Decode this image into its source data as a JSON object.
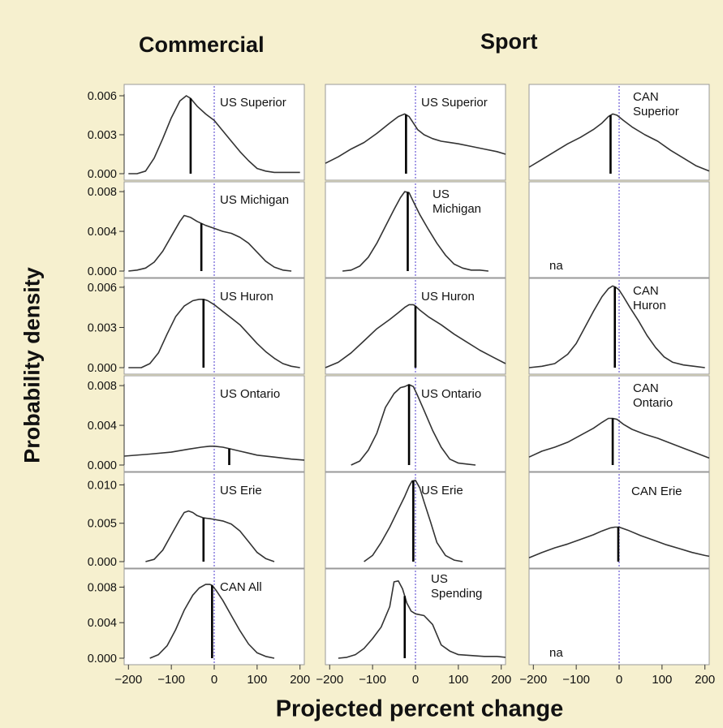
{
  "titles": {
    "col1": "Commercial",
    "col2": "Sport",
    "ylabel": "Probability density",
    "xlabel": "Projected percent change"
  },
  "chart_data": {
    "type": "line",
    "x_ticks": [
      -200,
      -100,
      0,
      100,
      200
    ],
    "x_tick_labels": [
      "−200",
      "−100",
      "0",
      "100",
      "200"
    ],
    "x_range": [
      -210,
      210
    ],
    "reference_line": {
      "x": 0,
      "color": "#6a5bd6",
      "style": "dotted"
    },
    "row_axes": [
      {
        "ylim": [
          0,
          0.0065
        ],
        "ticks": [
          "0.006",
          "0.003",
          "0.000"
        ],
        "tick_values": [
          0.006,
          0.003,
          0.0
        ]
      },
      {
        "ylim": [
          0,
          0.0085
        ],
        "ticks": [
          "0.008",
          "0.004",
          "0.000"
        ],
        "tick_values": [
          0.008,
          0.004,
          0.0
        ]
      },
      {
        "ylim": [
          0,
          0.0063
        ],
        "ticks": [
          "0.006",
          "0.003",
          "0.000"
        ],
        "tick_values": [
          0.006,
          0.003,
          0.0
        ]
      },
      {
        "ylim": [
          0,
          0.0085
        ],
        "ticks": [
          "0.008",
          "0.004",
          "0.000"
        ],
        "tick_values": [
          0.008,
          0.004,
          0.0
        ]
      },
      {
        "ylim": [
          0,
          0.011
        ],
        "ticks": [
          "0.010",
          "0.005",
          "0.000"
        ],
        "tick_values": [
          0.01,
          0.005,
          0.0
        ]
      },
      {
        "ylim": [
          0,
          0.0095
        ],
        "ticks": [
          "0.008",
          "0.004",
          "0.000"
        ],
        "tick_values": [
          0.008,
          0.004,
          0.0
        ]
      }
    ],
    "panels": [
      {
        "row": 0,
        "col": 0,
        "label": [
          "US Superior"
        ],
        "mean": -55,
        "x": [
          -200,
          -180,
          -160,
          -140,
          -120,
          -100,
          -80,
          -65,
          -55,
          -40,
          -20,
          0,
          20,
          40,
          60,
          80,
          100,
          120,
          140,
          160,
          180,
          200
        ],
        "y": [
          0,
          0,
          0.0002,
          0.0012,
          0.0027,
          0.0043,
          0.0056,
          0.006,
          0.0058,
          0.0052,
          0.0046,
          0.0041,
          0.0033,
          0.0025,
          0.0017,
          0.001,
          0.0004,
          0.0002,
          0.0001,
          0.0001,
          0.0001,
          0.0001
        ]
      },
      {
        "row": 0,
        "col": 1,
        "label": [
          "US Superior"
        ],
        "mean": -22,
        "x": [
          -210,
          -180,
          -150,
          -120,
          -90,
          -60,
          -40,
          -25,
          -15,
          -5,
          5,
          20,
          40,
          60,
          80,
          100,
          130,
          160,
          190,
          210
        ],
        "y": [
          0.0008,
          0.0013,
          0.0019,
          0.0024,
          0.0031,
          0.0039,
          0.0044,
          0.0046,
          0.0044,
          0.0039,
          0.0034,
          0.003,
          0.0027,
          0.0025,
          0.0024,
          0.0023,
          0.0021,
          0.0019,
          0.0017,
          0.0015
        ]
      },
      {
        "row": 0,
        "col": 2,
        "label": [
          "CAN",
          "Superior"
        ],
        "mean": -20,
        "x": [
          -210,
          -180,
          -150,
          -120,
          -90,
          -60,
          -40,
          -25,
          -15,
          -5,
          10,
          30,
          60,
          90,
          120,
          150,
          180,
          210
        ],
        "y": [
          0.0005,
          0.0011,
          0.0017,
          0.0023,
          0.0028,
          0.0034,
          0.0039,
          0.0044,
          0.0046,
          0.0045,
          0.0041,
          0.0036,
          0.003,
          0.0025,
          0.0018,
          0.0012,
          0.0006,
          0.0002
        ]
      },
      {
        "row": 1,
        "col": 0,
        "label": [
          "US Michigan"
        ],
        "mean": -30,
        "x": [
          -200,
          -180,
          -160,
          -140,
          -120,
          -100,
          -80,
          -70,
          -55,
          -40,
          -20,
          0,
          20,
          40,
          60,
          80,
          100,
          120,
          140,
          160,
          180
        ],
        "y": [
          0,
          0.0001,
          0.0003,
          0.0009,
          0.002,
          0.0035,
          0.005,
          0.0056,
          0.0054,
          0.005,
          0.0046,
          0.0043,
          0.004,
          0.0038,
          0.0034,
          0.0028,
          0.0019,
          0.001,
          0.0004,
          0.0001,
          0
        ]
      },
      {
        "row": 1,
        "col": 1,
        "label": [
          "US",
          "Michigan"
        ],
        "mean": -18,
        "x": [
          -170,
          -150,
          -130,
          -110,
          -90,
          -70,
          -50,
          -35,
          -25,
          -15,
          -5,
          10,
          30,
          50,
          70,
          90,
          110,
          130,
          150,
          170
        ],
        "y": [
          0,
          0.0001,
          0.0005,
          0.0014,
          0.0028,
          0.0045,
          0.0062,
          0.0074,
          0.008,
          0.0079,
          0.007,
          0.0057,
          0.0042,
          0.0028,
          0.0016,
          0.0007,
          0.0003,
          0.0001,
          0.0001,
          0
        ]
      },
      {
        "row": 1,
        "col": 2,
        "label": [
          "na"
        ],
        "mean": null,
        "x": [],
        "y": []
      },
      {
        "row": 2,
        "col": 0,
        "label": [
          "US Huron"
        ],
        "mean": -25,
        "x": [
          -200,
          -170,
          -150,
          -130,
          -110,
          -90,
          -70,
          -50,
          -35,
          -25,
          -15,
          0,
          20,
          40,
          60,
          80,
          100,
          120,
          140,
          160,
          180,
          200
        ],
        "y": [
          0,
          0,
          0.0003,
          0.0011,
          0.0025,
          0.0038,
          0.0046,
          0.005,
          0.0051,
          0.0051,
          0.005,
          0.0047,
          0.0042,
          0.0037,
          0.0032,
          0.0025,
          0.0018,
          0.0012,
          0.0007,
          0.0003,
          0.0001,
          0
        ]
      },
      {
        "row": 2,
        "col": 1,
        "label": [
          "US Huron"
        ],
        "mean": 0,
        "x": [
          -210,
          -180,
          -150,
          -120,
          -90,
          -60,
          -40,
          -25,
          -15,
          -5,
          0,
          10,
          30,
          60,
          90,
          120,
          150,
          180,
          210
        ],
        "y": [
          0,
          0.0004,
          0.0011,
          0.002,
          0.0029,
          0.0036,
          0.0041,
          0.0045,
          0.0047,
          0.0047,
          0.0046,
          0.0043,
          0.0038,
          0.0032,
          0.0025,
          0.0019,
          0.0013,
          0.0008,
          0.0003
        ]
      },
      {
        "row": 2,
        "col": 2,
        "label": [
          "CAN",
          "Huron"
        ],
        "mean": -10,
        "x": [
          -210,
          -180,
          -150,
          -120,
          -100,
          -80,
          -60,
          -40,
          -25,
          -15,
          -8,
          0,
          10,
          25,
          45,
          65,
          85,
          105,
          125,
          150,
          175,
          200
        ],
        "y": [
          0,
          0.0001,
          0.0003,
          0.001,
          0.0018,
          0.003,
          0.0042,
          0.0053,
          0.0059,
          0.0061,
          0.006,
          0.0058,
          0.0053,
          0.0045,
          0.0035,
          0.0024,
          0.0015,
          0.0008,
          0.0004,
          0.0002,
          0.0001,
          0
        ]
      },
      {
        "row": 3,
        "col": 0,
        "label": [
          "US Ontario"
        ],
        "mean": 35,
        "x": [
          -210,
          -150,
          -100,
          -60,
          -30,
          -10,
          0,
          20,
          40,
          60,
          80,
          100,
          140,
          180,
          210
        ],
        "y": [
          0.0009,
          0.0011,
          0.0013,
          0.0016,
          0.0018,
          0.0019,
          0.0019,
          0.0018,
          0.0016,
          0.0014,
          0.0012,
          0.001,
          0.0008,
          0.0006,
          0.0005
        ]
      },
      {
        "row": 3,
        "col": 1,
        "label": [
          "US Ontario"
        ],
        "mean": -15,
        "x": [
          -150,
          -130,
          -110,
          -90,
          -70,
          -50,
          -35,
          -25,
          -15,
          -5,
          5,
          20,
          40,
          60,
          80,
          100,
          120,
          140
        ],
        "y": [
          0,
          0.0004,
          0.0015,
          0.0032,
          0.0058,
          0.0072,
          0.0078,
          0.0079,
          0.0081,
          0.0079,
          0.007,
          0.0055,
          0.0035,
          0.0018,
          0.0006,
          0.0002,
          0.0001,
          0
        ]
      },
      {
        "row": 3,
        "col": 2,
        "label": [
          "CAN",
          "Ontario"
        ],
        "mean": -15,
        "x": [
          -210,
          -180,
          -150,
          -120,
          -90,
          -60,
          -40,
          -25,
          -15,
          -5,
          10,
          30,
          60,
          90,
          120,
          150,
          180,
          210
        ],
        "y": [
          0.0008,
          0.0014,
          0.0018,
          0.0023,
          0.003,
          0.0037,
          0.0043,
          0.0047,
          0.0047,
          0.0046,
          0.0041,
          0.0036,
          0.0031,
          0.0027,
          0.0022,
          0.0017,
          0.0012,
          0.0007
        ]
      },
      {
        "row": 4,
        "col": 0,
        "label": [
          "US Erie"
        ],
        "mean": -25,
        "x": [
          -160,
          -140,
          -120,
          -100,
          -80,
          -70,
          -60,
          -50,
          -40,
          -25,
          -10,
          0,
          20,
          40,
          60,
          80,
          100,
          120,
          140
        ],
        "y": [
          0,
          0.0003,
          0.0015,
          0.0035,
          0.0055,
          0.0064,
          0.0066,
          0.0064,
          0.006,
          0.0057,
          0.0056,
          0.0055,
          0.0053,
          0.0049,
          0.004,
          0.0026,
          0.0012,
          0.0004,
          0
        ]
      },
      {
        "row": 4,
        "col": 1,
        "label": [
          "US Erie"
        ],
        "mean": -5,
        "x": [
          -120,
          -100,
          -80,
          -60,
          -40,
          -25,
          -15,
          -8,
          0,
          10,
          20,
          35,
          50,
          70,
          90,
          110
        ],
        "y": [
          0,
          0.0008,
          0.0025,
          0.0045,
          0.0068,
          0.0085,
          0.0098,
          0.0105,
          0.0106,
          0.0096,
          0.0078,
          0.0052,
          0.0025,
          0.0008,
          0.0002,
          0
        ]
      },
      {
        "row": 4,
        "col": 2,
        "label": [
          "CAN Erie"
        ],
        "mean": -2,
        "x": [
          -210,
          -180,
          -150,
          -120,
          -90,
          -60,
          -40,
          -20,
          -10,
          0,
          20,
          50,
          80,
          110,
          140,
          170,
          200,
          210
        ],
        "y": [
          0.0005,
          0.0012,
          0.0018,
          0.0023,
          0.0029,
          0.0035,
          0.004,
          0.0044,
          0.0045,
          0.0045,
          0.0041,
          0.0034,
          0.0028,
          0.0022,
          0.0017,
          0.0012,
          0.0008,
          0.0007
        ]
      },
      {
        "row": 5,
        "col": 0,
        "label": [
          "CAN All"
        ],
        "mean": -5,
        "x": [
          -150,
          -130,
          -110,
          -90,
          -70,
          -50,
          -35,
          -20,
          -10,
          -5,
          5,
          20,
          40,
          60,
          80,
          100,
          120,
          140
        ],
        "y": [
          0,
          0.0004,
          0.0014,
          0.0032,
          0.0054,
          0.0071,
          0.0079,
          0.0083,
          0.0083,
          0.0082,
          0.0076,
          0.0065,
          0.0048,
          0.0031,
          0.0016,
          0.0006,
          0.0002,
          0
        ]
      },
      {
        "row": 5,
        "col": 1,
        "label": [
          "US",
          "Spending"
        ],
        "mean": -25,
        "x": [
          -180,
          -160,
          -140,
          -120,
          -100,
          -80,
          -60,
          -50,
          -40,
          -30,
          -20,
          -10,
          0,
          20,
          40,
          60,
          80,
          100,
          130,
          160,
          190,
          210
        ],
        "y": [
          0,
          0.0001,
          0.0004,
          0.0011,
          0.0022,
          0.0035,
          0.0058,
          0.0086,
          0.0087,
          0.0078,
          0.0062,
          0.0053,
          0.005,
          0.0048,
          0.0038,
          0.0015,
          0.0008,
          0.0004,
          0.0003,
          0.0002,
          0.0002,
          0.0001
        ]
      },
      {
        "row": 5,
        "col": 2,
        "label": [
          "na"
        ],
        "mean": null,
        "x": [],
        "y": []
      }
    ]
  }
}
